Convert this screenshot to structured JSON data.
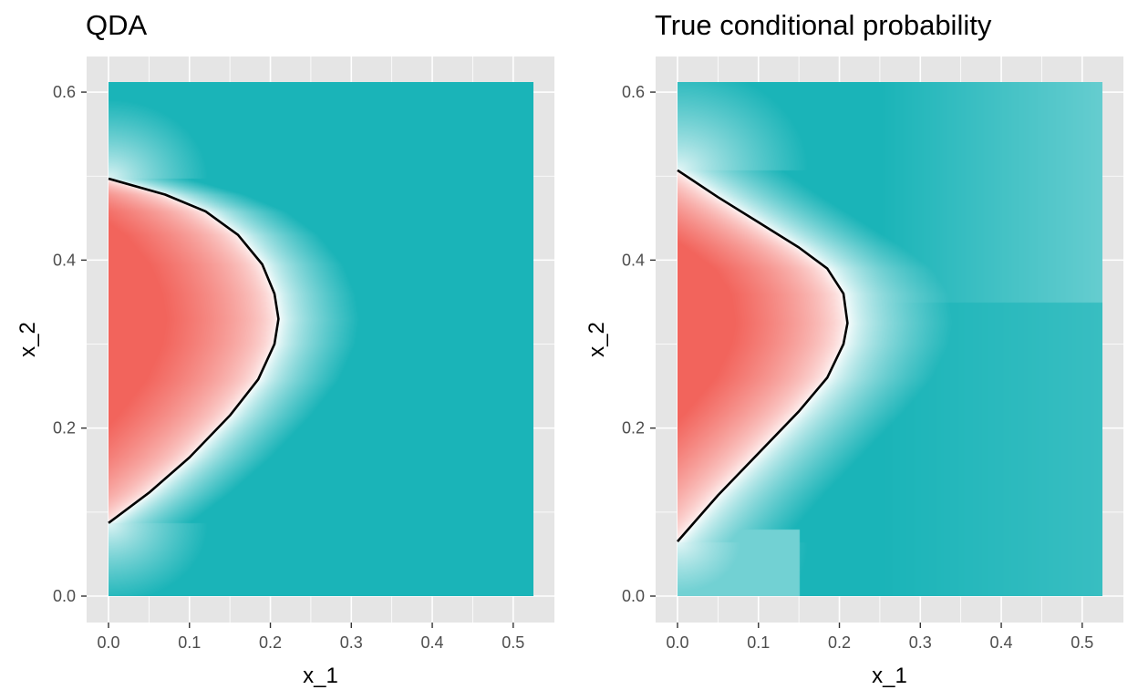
{
  "colors": {
    "background": "#ebebeb",
    "panel_bg": "#e5e5e5",
    "grid_major": "#ffffff",
    "low_color": "#f8766d",
    "mid_color": "#ffffff",
    "high_color": "#00bfc4",
    "boundary": "#000000",
    "tick_text": "#4d4d4d"
  },
  "chart_data": [
    {
      "type": "heatmap",
      "title": "QDA",
      "xlabel": "x_1",
      "ylabel": "x_2",
      "xlim": [
        0,
        0.525
      ],
      "ylim": [
        0,
        0.612
      ],
      "x_ticks": [
        "0.0",
        "0.1",
        "0.2",
        "0.3",
        "0.4",
        "0.5"
      ],
      "y_ticks": [
        "0.0",
        "0.2",
        "0.4",
        "0.6"
      ],
      "x_tick_values": [
        0,
        0.1,
        0.2,
        0.3,
        0.4,
        0.5
      ],
      "y_tick_values": [
        0,
        0.2,
        0.4,
        0.6
      ],
      "grid": true,
      "decision_boundary": [
        {
          "x": 0.0,
          "y": 0.087
        },
        {
          "x": 0.05,
          "y": 0.123
        },
        {
          "x": 0.1,
          "y": 0.165
        },
        {
          "x": 0.15,
          "y": 0.215
        },
        {
          "x": 0.185,
          "y": 0.258
        },
        {
          "x": 0.205,
          "y": 0.3
        },
        {
          "x": 0.21,
          "y": 0.33
        },
        {
          "x": 0.205,
          "y": 0.36
        },
        {
          "x": 0.19,
          "y": 0.395
        },
        {
          "x": 0.16,
          "y": 0.43
        },
        {
          "x": 0.12,
          "y": 0.458
        },
        {
          "x": 0.07,
          "y": 0.478
        },
        {
          "x": 0.0,
          "y": 0.497
        }
      ]
    },
    {
      "type": "heatmap",
      "title": "True conditional probability",
      "xlabel": "x_1",
      "ylabel": "x_2",
      "xlim": [
        0,
        0.525
      ],
      "ylim": [
        0,
        0.612
      ],
      "x_ticks": [
        "0.0",
        "0.1",
        "0.2",
        "0.3",
        "0.4",
        "0.5"
      ],
      "y_ticks": [
        "0.0",
        "0.2",
        "0.4",
        "0.6"
      ],
      "x_tick_values": [
        0,
        0.1,
        0.2,
        0.3,
        0.4,
        0.5
      ],
      "y_tick_values": [
        0,
        0.2,
        0.4,
        0.6
      ],
      "grid": true,
      "decision_boundary": [
        {
          "x": 0.0,
          "y": 0.065
        },
        {
          "x": 0.05,
          "y": 0.12
        },
        {
          "x": 0.1,
          "y": 0.17
        },
        {
          "x": 0.15,
          "y": 0.22
        },
        {
          "x": 0.185,
          "y": 0.26
        },
        {
          "x": 0.205,
          "y": 0.3
        },
        {
          "x": 0.21,
          "y": 0.325
        },
        {
          "x": 0.205,
          "y": 0.36
        },
        {
          "x": 0.185,
          "y": 0.39
        },
        {
          "x": 0.15,
          "y": 0.415
        },
        {
          "x": 0.1,
          "y": 0.445
        },
        {
          "x": 0.05,
          "y": 0.475
        },
        {
          "x": 0.0,
          "y": 0.507
        }
      ]
    }
  ]
}
